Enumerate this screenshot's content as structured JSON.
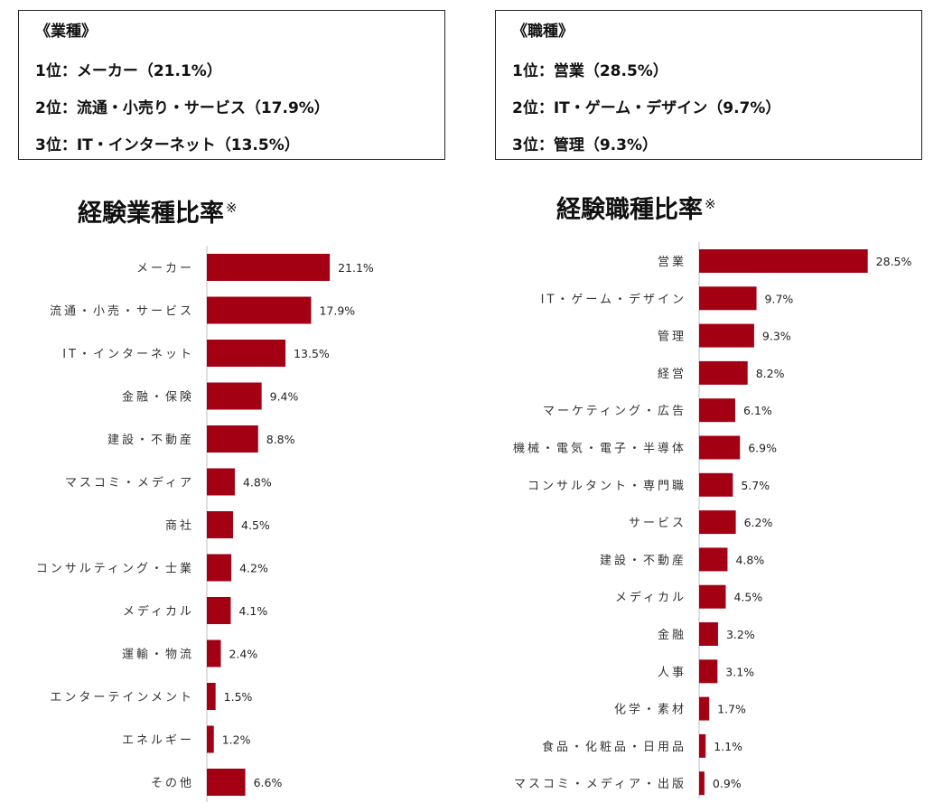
{
  "industry_box": {
    "heading": "《業種》",
    "lines": [
      "1位：メーカー（21.1%）",
      "2位：流通・小売り・サービス（17.9%）",
      "3位：IT・インターネット（13.5%）"
    ]
  },
  "job_box": {
    "heading": "《職種》",
    "lines": [
      "1位：営業（28.5%）",
      "2位：IT・ゲーム・デザイン（9.7%）",
      "3位：管理（9.3%）"
    ]
  },
  "colors": {
    "bar": "#a30014",
    "axis": "#bfbfbf"
  },
  "chart_data": [
    {
      "type": "bar",
      "orientation": "horizontal",
      "title": "経験業種比率",
      "title_mark": "※",
      "categories": [
        "メーカー",
        "流通・小売・サービス",
        "IT・インターネット",
        "金融・保険",
        "建設・不動産",
        "マスコミ・メディア",
        "商社",
        "コンサルティング・士業",
        "メディカル",
        "運輸・物流",
        "エンターテインメント",
        "エネルギー",
        "その他"
      ],
      "values": [
        21.1,
        17.9,
        13.5,
        9.4,
        8.8,
        4.8,
        4.5,
        4.2,
        4.1,
        2.4,
        1.5,
        1.2,
        6.6
      ],
      "value_labels": [
        "21.1%",
        "17.9%",
        "13.5%",
        "9.4%",
        "8.8%",
        "4.8%",
        "4.5%",
        "4.2%",
        "4.1%",
        "2.4%",
        "1.5%",
        "1.2%",
        "6.6%"
      ],
      "unit": "%",
      "grid": false,
      "legend": "none"
    },
    {
      "type": "bar",
      "orientation": "horizontal",
      "title": "経験職種比率",
      "title_mark": "※",
      "categories": [
        "営業",
        "IT・ゲーム・デザイン",
        "管理",
        "経営",
        "マーケティング・広告",
        "機械・電気・電子・半導体",
        "コンサルタント・専門職",
        "サービス",
        "建設・不動産",
        "メディカル",
        "金融",
        "人事",
        "化学・素材",
        "食品・化粧品・日用品",
        "マスコミ・メディア・出版"
      ],
      "values": [
        28.5,
        9.7,
        9.3,
        8.2,
        6.1,
        6.9,
        5.7,
        6.2,
        4.8,
        4.5,
        3.2,
        3.1,
        1.7,
        1.1,
        0.9
      ],
      "value_labels": [
        "28.5%",
        "9.7%",
        "9.3%",
        "8.2%",
        "6.1%",
        "6.9%",
        "5.7%",
        "6.2%",
        "4.8%",
        "4.5%",
        "3.2%",
        "3.1%",
        "1.7%",
        "1.1%",
        "0.9%"
      ],
      "unit": "%",
      "grid": false,
      "legend": "none"
    }
  ]
}
